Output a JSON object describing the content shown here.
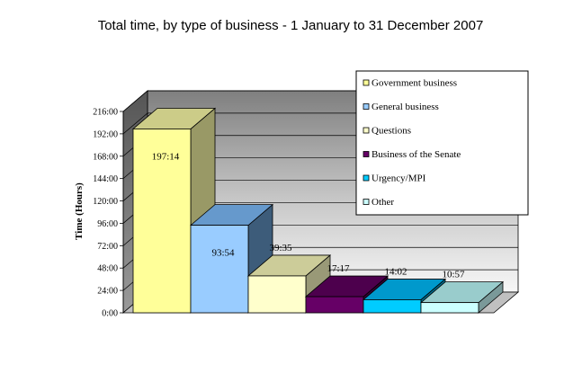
{
  "chart_data": {
    "type": "bar",
    "title": "Total time, by type of business - 1 January to 31 December 2007",
    "ylabel": "Time (Hours)",
    "xlabel": "",
    "y_ticks": [
      "0:00",
      "24:00",
      "48:00",
      "72:00",
      "96:00",
      "120:00",
      "144:00",
      "168:00",
      "192:00",
      "216:00"
    ],
    "ylim_hours": [
      0,
      216
    ],
    "tick_step_hours": 24,
    "legend_position": "top-right",
    "grid": true,
    "series": [
      {
        "name": "Government business",
        "label": "197:14",
        "hours": 197.23,
        "color": "#ffff99",
        "side": "#999966",
        "top": "#cccc88"
      },
      {
        "name": "General business",
        "label": "93:54",
        "hours": 93.9,
        "color": "#99ccff",
        "side": "#3d5c7a",
        "top": "#6699cc"
      },
      {
        "name": "Questions",
        "label": "39:35",
        "hours": 39.58,
        "color": "#ffffcc",
        "side": "#999977",
        "top": "#cccc99"
      },
      {
        "name": "Business of the Senate",
        "label": "17:17",
        "hours": 17.28,
        "color": "#660066",
        "side": "#330033",
        "top": "#4d004d"
      },
      {
        "name": "Urgency/MPI",
        "label": "14:02",
        "hours": 14.03,
        "color": "#00ccff",
        "side": "#006b8a",
        "top": "#0099cc"
      },
      {
        "name": "Other",
        "label": "10:57",
        "hours": 10.95,
        "color": "#ccffff",
        "side": "#7a9999",
        "top": "#99cccc"
      }
    ]
  }
}
